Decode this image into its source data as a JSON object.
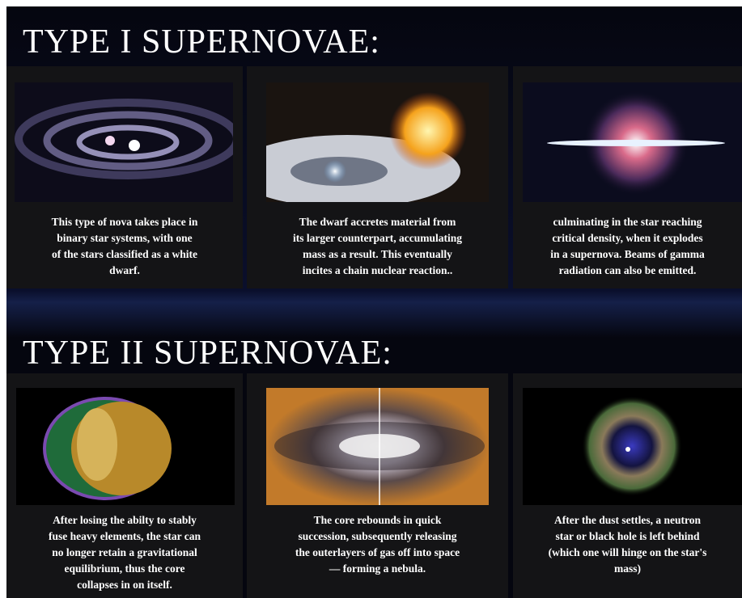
{
  "sections": [
    {
      "title": "TYPE I SUPERNOVAE:",
      "panels": [
        {
          "caption": [
            "This type of nova takes place in",
            "binary star systems, with one",
            "of the stars classified as a white",
            "dwarf."
          ]
        },
        {
          "caption": [
            "The dwarf accretes material from",
            "its larger counterpart, accumulating",
            "mass as a result. This eventually",
            "incites a chain nuclear reaction.."
          ]
        },
        {
          "caption": [
            "culminating in the star reaching",
            "critical density, when it explodes",
            "in a supernova. Beams of gamma",
            "radiation can also be emitted."
          ]
        }
      ]
    },
    {
      "title": "TYPE II SUPERNOVAE:",
      "panels": [
        {
          "caption": [
            "After losing the abilty to stably",
            "fuse heavy elements, the star can",
            "no longer retain a gravitational",
            "equilibrium, thus the core",
            "collapses in on itself."
          ]
        },
        {
          "caption": [
            "The core rebounds in quick",
            "succession, subsequently releasing",
            "the outerlayers of gas off into space",
            "— forming a nebula."
          ]
        },
        {
          "caption": [
            "After the dust settles, a neutron",
            "star or black hole is left behind",
            "(which one will hinge on the star's",
            "mass)"
          ]
        }
      ]
    }
  ]
}
